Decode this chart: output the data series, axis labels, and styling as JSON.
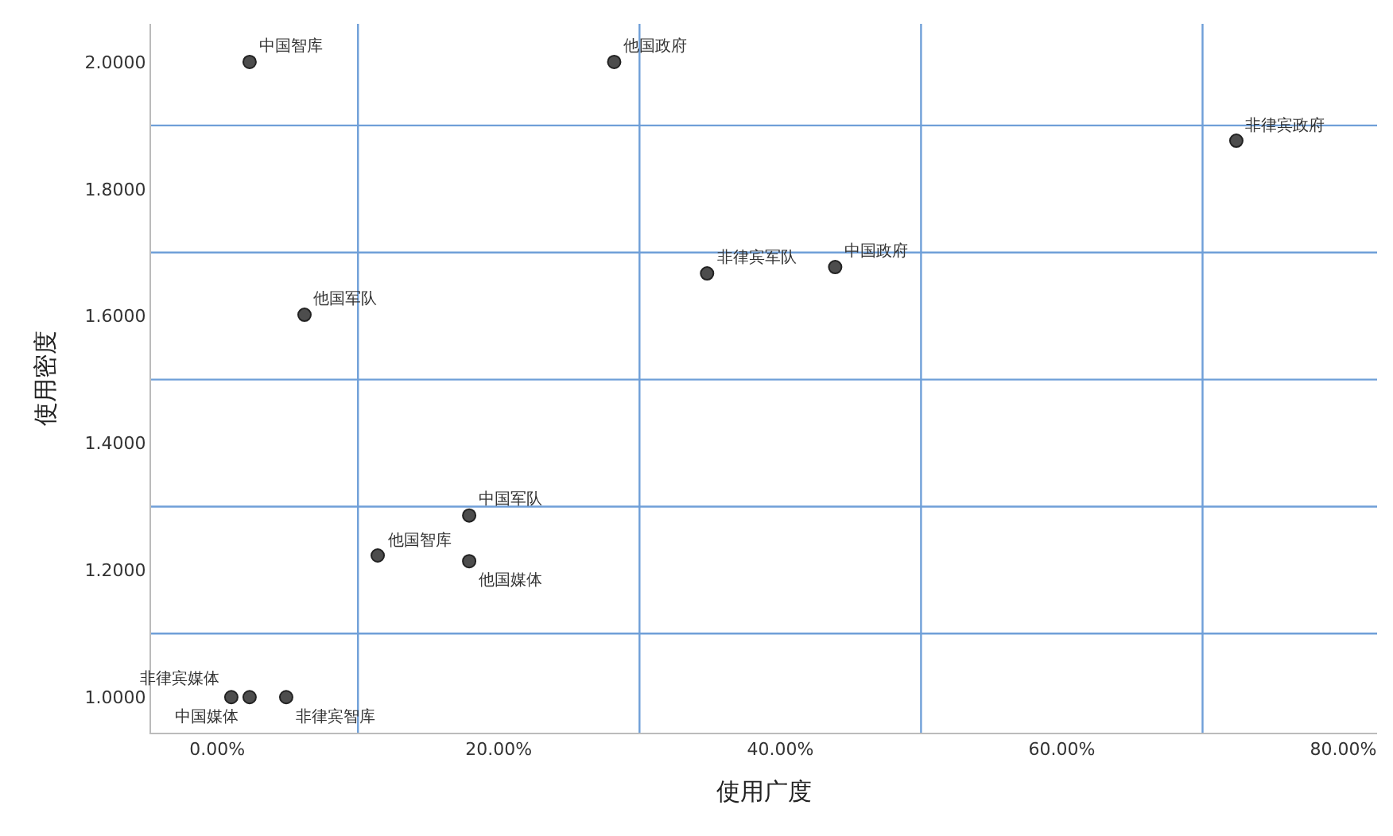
{
  "chart_data": {
    "type": "scatter",
    "xlabel": "使用广度",
    "ylabel": "使用密度",
    "x": [
      2.3,
      28.2,
      72.4,
      34.8,
      43.9,
      6.2,
      17.9,
      11.4,
      17.9,
      1.0,
      2.3,
      4.9
    ],
    "series": [
      {
        "color": "#4d4d4d",
        "values": [
          2.0,
          2.0,
          1.876,
          1.667,
          1.677,
          1.602,
          1.286,
          1.223,
          1.214,
          1.0,
          1.0,
          1.0
        ]
      }
    ],
    "marker": "circle",
    "grid": false,
    "annotations": [
      {
        "text": "中国智库",
        "x": 2.3,
        "y": 2.0
      },
      {
        "text": "他国政府",
        "x": 28.2,
        "y": 2.0
      },
      {
        "text": "非律宾政府",
        "x": 72.4,
        "y": 1.876
      },
      {
        "text": "非律宾军队",
        "x": 34.8,
        "y": 1.667
      },
      {
        "text": "中国政府",
        "x": 43.9,
        "y": 1.677
      },
      {
        "text": "他国军队",
        "x": 6.2,
        "y": 1.602
      },
      {
        "text": "中国军队",
        "x": 17.9,
        "y": 1.286
      },
      {
        "text": "他国智库",
        "x": 11.4,
        "y": 1.223
      },
      {
        "text": "他国媒体",
        "x": 17.9,
        "y": 1.214
      },
      {
        "text": "非律宾媒体",
        "x": 1.0,
        "y": 1.0
      },
      {
        "text": "中国媒体",
        "x": 2.3,
        "y": 1.0
      },
      {
        "text": "非律宾智库",
        "x": 4.9,
        "y": 1.0
      }
    ],
    "ref_lines": [
      {
        "axis": "x",
        "value": 10,
        "color": "#6f9fd8"
      },
      {
        "axis": "x",
        "value": 30,
        "color": "#6f9fd8"
      },
      {
        "axis": "x",
        "value": 50,
        "color": "#6f9fd8"
      },
      {
        "axis": "x",
        "value": 70,
        "color": "#6f9fd8"
      },
      {
        "axis": "y",
        "value": 1.1,
        "color": "#6f9fd8"
      },
      {
        "axis": "y",
        "value": 1.3,
        "color": "#6f9fd8"
      },
      {
        "axis": "y",
        "value": 1.5,
        "color": "#6f9fd8"
      },
      {
        "axis": "y",
        "value": 1.7,
        "color": "#6f9fd8"
      },
      {
        "axis": "y",
        "value": 1.9,
        "color": "#6f9fd8"
      }
    ],
    "xlim": [
      -4.7,
      82.4
    ],
    "ylim": [
      0.944,
      2.06
    ],
    "xticks": [
      {
        "value": 0,
        "label": "0.00%"
      },
      {
        "value": 20,
        "label": "20.00%"
      },
      {
        "value": 40,
        "label": "40.00%"
      },
      {
        "value": 60,
        "label": "60.00%"
      },
      {
        "value": 80,
        "label": "80.00%"
      }
    ],
    "yticks": [
      {
        "value": 1.0,
        "label": "1.0000"
      },
      {
        "value": 1.2,
        "label": "1.2000"
      },
      {
        "value": 1.4,
        "label": "1.4000"
      },
      {
        "value": 1.6,
        "label": "1.6000"
      },
      {
        "value": 1.8,
        "label": "1.8000"
      },
      {
        "value": 2.0,
        "label": "2.0000"
      }
    ]
  }
}
